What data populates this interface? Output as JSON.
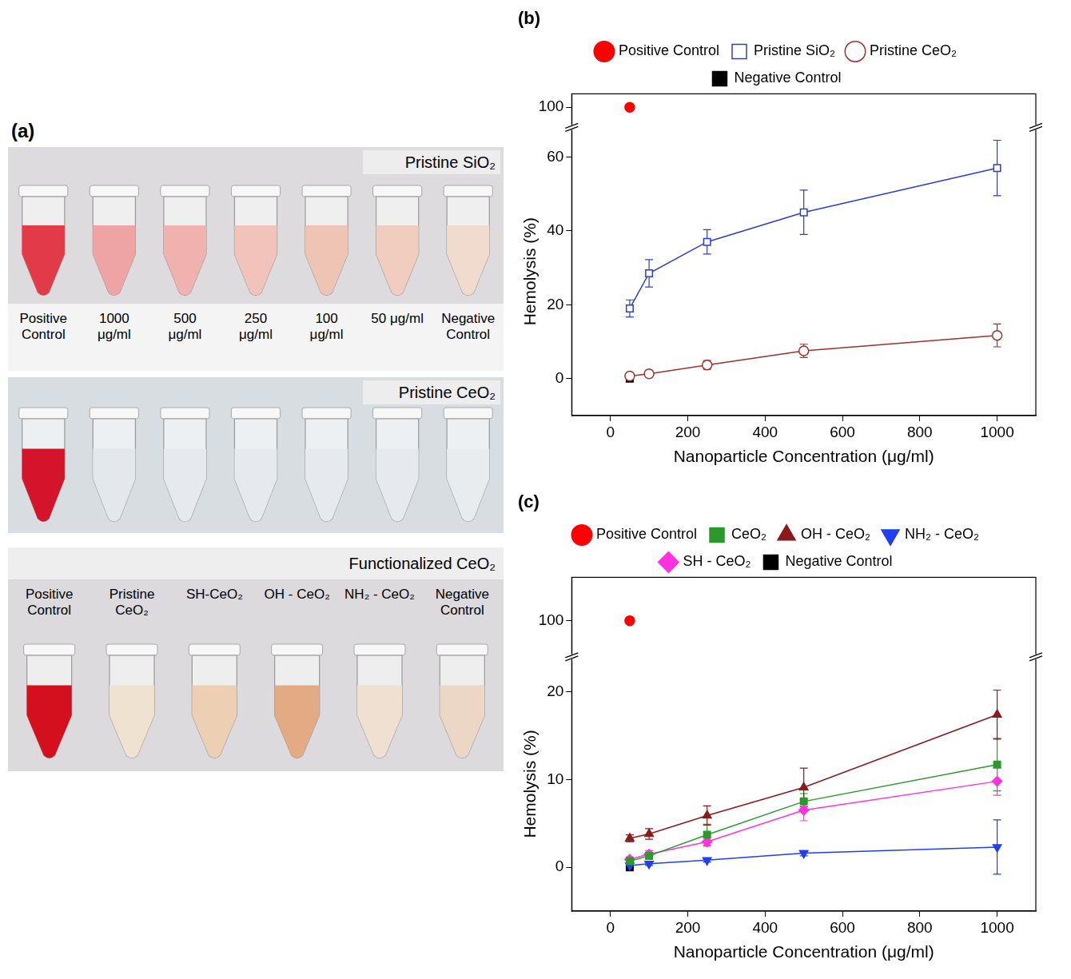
{
  "figure_a": {
    "panel_label": "(a)",
    "photos": [
      {
        "title": "Pristine SiO₂",
        "tubes": [
          {
            "label": "Positive Control",
            "color": "#e23a48"
          },
          {
            "label": "1000 μg/ml",
            "color": "#eea3a5"
          },
          {
            "label": "500 μg/ml",
            "color": "#f0b2ae"
          },
          {
            "label": "250 μg/ml",
            "color": "#f1c3bb"
          },
          {
            "label": "100 μg/ml",
            "color": "#eec4b4"
          },
          {
            "label": "50 μg/ml",
            "color": "#f0cdbf"
          },
          {
            "label": "Negative Control",
            "color": "#f1dbcf"
          }
        ]
      },
      {
        "title": "Pristine CeO₂",
        "tubes": [
          {
            "color": "#d4142a"
          },
          {
            "color": "#e4e8ec"
          },
          {
            "color": "#e6eaee"
          },
          {
            "color": "#e6eaee"
          },
          {
            "color": "#e6eaee"
          },
          {
            "color": "#e6eaee"
          },
          {
            "color": "#e8ecef"
          }
        ]
      },
      {
        "title": "Functionalized CeO₂",
        "tubes": [
          {
            "label": "Positive Control",
            "color": "#d40f1e"
          },
          {
            "label": "Pristine CeO₂",
            "color": "#f0e2d0"
          },
          {
            "label": "SH-CeO₂",
            "color": "#edcfb4"
          },
          {
            "label": "OH - CeO₂",
            "color": "#e2ab84"
          },
          {
            "label": "NH₂ - CeO₂",
            "color": "#efe0d2"
          },
          {
            "label": "Negative Control",
            "color": "#ecd6c6"
          }
        ]
      }
    ]
  },
  "chart_data": [
    {
      "type": "line",
      "panel_label": "(b)",
      "x_label": "Nanoparticle Concentration (μg/ml)",
      "y_label": "Hemolysis (%)",
      "xlim": [
        -100,
        1100
      ],
      "xticks": [
        0,
        200,
        400,
        600,
        800,
        1000
      ],
      "ylim": [
        -10,
        68
      ],
      "yticks": [
        0,
        20,
        40,
        60
      ],
      "y2lim": [
        97,
        102
      ],
      "y2ticks": [
        100
      ],
      "grid": false,
      "legend": "top",
      "series": [
        {
          "name": "Positive Control",
          "color": "#ff0000",
          "marker": "circle",
          "line_style": "none",
          "axis": "y2",
          "x": [
            50
          ],
          "values": [
            100
          ]
        },
        {
          "name": "Pristine SiO₂",
          "color": "#2a3fd0",
          "marker": "square_open",
          "line_style": "solid",
          "x": [
            50,
            100,
            250,
            500,
            1000
          ],
          "values": [
            19,
            28.5,
            37,
            45,
            57
          ],
          "errors": [
            2.3,
            3.7,
            3.3,
            6,
            7.5
          ]
        },
        {
          "name": "Pristine CeO₂",
          "color": "#a0302a",
          "marker": "circle_open",
          "line_style": "solid",
          "x": [
            50,
            100,
            250,
            500,
            1000
          ],
          "values": [
            0.7,
            1.3,
            3.7,
            7.5,
            11.7
          ],
          "errors": [
            0.5,
            0.6,
            1.2,
            1.8,
            3.1
          ]
        },
        {
          "name": "Negative Control",
          "color": "#000000",
          "marker": "square",
          "line_style": "none",
          "x": [
            50
          ],
          "values": [
            0
          ]
        }
      ]
    },
    {
      "type": "line",
      "panel_label": "(c)",
      "x_label": "Nanoparticle Concentration (μg/ml)",
      "y_label": "Hemolysis (%)",
      "xlim": [
        -100,
        1100
      ],
      "xticks": [
        0,
        200,
        400,
        600,
        800,
        1000
      ],
      "ylim": [
        -5,
        24
      ],
      "yticks": [
        0,
        10,
        20
      ],
      "y2lim": [
        95,
        106
      ],
      "y2ticks": [
        100
      ],
      "grid": false,
      "legend": "top",
      "series": [
        {
          "name": "Positive Control",
          "color": "#ff0000",
          "marker": "circle",
          "line_style": "none",
          "axis": "y2",
          "x": [
            50
          ],
          "values": [
            100
          ]
        },
        {
          "name": "CeO₂",
          "color": "#2a9a2a",
          "marker": "square",
          "line_style": "solid",
          "x": [
            50,
            100,
            250,
            500,
            1000
          ],
          "values": [
            0.7,
            1.3,
            3.7,
            7.5,
            11.7
          ],
          "errors": [
            0.3,
            0.4,
            1.2,
            0.9,
            3
          ]
        },
        {
          "name": "OH - CeO₂",
          "color": "#8b1a1a",
          "marker": "triangle",
          "line_style": "solid",
          "x": [
            50,
            100,
            250,
            500,
            1000
          ],
          "values": [
            3.3,
            3.8,
            5.9,
            9.1,
            17.4
          ],
          "errors": [
            0.4,
            0.6,
            1.1,
            2.2,
            2.8
          ]
        },
        {
          "name": "NH₂ - CeO₂",
          "color": "#1f3ff0",
          "marker": "triangle_down",
          "line_style": "solid",
          "x": [
            50,
            100,
            250,
            500,
            1000
          ],
          "values": [
            0.2,
            0.4,
            0.8,
            1.6,
            2.3
          ],
          "errors": [
            0.2,
            0.2,
            0.2,
            0.3,
            3.1
          ]
        },
        {
          "name": "SH - CeO₂",
          "color": "#ff33dd",
          "marker": "diamond",
          "line_style": "solid",
          "x": [
            50,
            100,
            250,
            500,
            1000
          ],
          "values": [
            0.9,
            1.5,
            2.9,
            6.5,
            9.8
          ],
          "errors": [
            0.3,
            0.4,
            0.5,
            1.2,
            1.6
          ]
        },
        {
          "name": "Negative Control",
          "color": "#000000",
          "marker": "square",
          "line_style": "none",
          "x": [
            50
          ],
          "values": [
            0
          ]
        }
      ]
    }
  ]
}
